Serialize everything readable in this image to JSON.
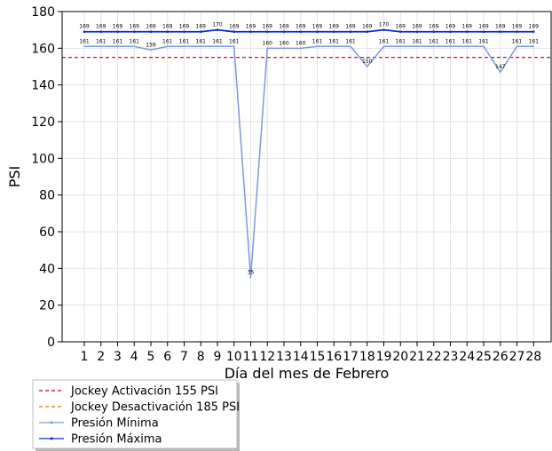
{
  "chart_data": {
    "type": "line",
    "xlabel": "Día del mes de  Febrero",
    "ylabel": "PSI",
    "ylim": [
      0,
      180
    ],
    "yticks": [
      "0",
      "20",
      "40",
      "60",
      "80",
      "100",
      "120",
      "140",
      "160",
      "180"
    ],
    "categories": [
      "1",
      "2",
      "3",
      "4",
      "5",
      "6",
      "7",
      "8",
      "9",
      "10",
      "11",
      "12",
      "13",
      "14",
      "15",
      "16",
      "17",
      "18",
      "19",
      "20",
      "21",
      "22",
      "23",
      "24",
      "25",
      "26",
      "27",
      "28"
    ],
    "grid": true,
    "legend_position": "below-left",
    "reference_lines": [
      {
        "name": "Jockey Activación 155 PSI",
        "value": 155,
        "color": "#cc0000",
        "style": "dashed",
        "visible": true
      },
      {
        "name": "Jockey Desactivación 185 PSI",
        "value": 185,
        "color": "#cc7a00",
        "style": "dashed",
        "visible": false
      }
    ],
    "series": [
      {
        "name": "Presión Mínima",
        "color": "#7b9ad8",
        "values": [
          161,
          161,
          161,
          161,
          159,
          161,
          161,
          161,
          161,
          161,
          35,
          160,
          160,
          160,
          161,
          161,
          161,
          150,
          161,
          161,
          161,
          161,
          161,
          161,
          161,
          147,
          161,
          161
        ],
        "labels": [
          "161",
          "161",
          "161",
          "161",
          "159",
          "161",
          "161",
          "161",
          "161",
          "161",
          "35",
          "160",
          "160",
          "160",
          "161",
          "161",
          "161",
          "150",
          "161",
          "161",
          "161",
          "161",
          "161",
          "161",
          "161",
          "147",
          "161",
          "161"
        ]
      },
      {
        "name": "Presión Máxima",
        "color": "#0a2ad0",
        "values": [
          169,
          169,
          169,
          169,
          169,
          169,
          169,
          169,
          170,
          169,
          169,
          169,
          169,
          169,
          169,
          169,
          169,
          169,
          170,
          169,
          169,
          169,
          169,
          169,
          169,
          169,
          169,
          169
        ],
        "labels": [
          "169",
          "169",
          "169",
          "169",
          "169",
          "169",
          "169",
          "169",
          "170",
          "169",
          "169",
          "169",
          "169",
          "169",
          "169",
          "169",
          "169",
          "169",
          "170",
          "169",
          "169",
          "169",
          "169",
          "169",
          "169",
          "169",
          "169",
          "169"
        ]
      }
    ]
  }
}
